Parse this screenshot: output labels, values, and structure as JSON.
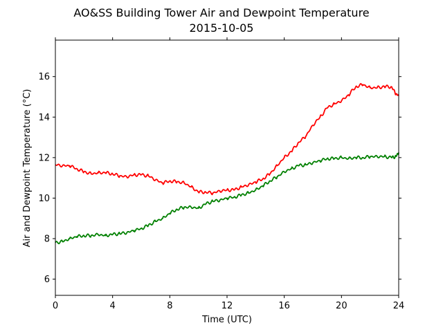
{
  "chart_data": {
    "type": "line",
    "title": "AO&SS Building Tower Air and Dewpoint Temperature",
    "subtitle": "2015-10-05",
    "xlabel": "Time (UTC)",
    "ylabel": "Air and Dewpoint Temperature (°C)",
    "xlim": [
      0,
      24
    ],
    "ylim": [
      5.2,
      17.8
    ],
    "xticks": [
      0,
      4,
      8,
      12,
      16,
      20,
      24
    ],
    "yticks": [
      6,
      8,
      10,
      12,
      14,
      16
    ],
    "grid": false,
    "series": [
      {
        "color": "#ff0000",
        "x": [
          0,
          0.5,
          1,
          1.5,
          2,
          2.5,
          3,
          3.5,
          4,
          4.5,
          5,
          5.5,
          6,
          6.5,
          7,
          7.5,
          8,
          8.5,
          9,
          9.5,
          10,
          10.5,
          11,
          11.5,
          12,
          12.5,
          13,
          13.5,
          14,
          14.5,
          15,
          15.5,
          16,
          16.5,
          17,
          17.5,
          18,
          18.5,
          19,
          19.5,
          20,
          20.5,
          21,
          21.5,
          22,
          22.5,
          23,
          23.5,
          23.8,
          24
        ],
        "values": [
          11.65,
          11.6,
          11.6,
          11.45,
          11.3,
          11.2,
          11.25,
          11.25,
          11.2,
          11.1,
          11.05,
          11.15,
          11.15,
          11.1,
          10.9,
          10.75,
          10.85,
          10.8,
          10.75,
          10.55,
          10.3,
          10.3,
          10.25,
          10.35,
          10.4,
          10.4,
          10.55,
          10.65,
          10.8,
          10.95,
          11.2,
          11.6,
          12.0,
          12.3,
          12.75,
          13.05,
          13.6,
          14.0,
          14.45,
          14.65,
          14.8,
          15.1,
          15.5,
          15.6,
          15.45,
          15.45,
          15.5,
          15.5,
          15.15,
          15.05
        ]
      },
      {
        "color": "#008000",
        "x": [
          0,
          0.5,
          1,
          1.5,
          2,
          2.5,
          3,
          3.5,
          4,
          4.5,
          5,
          5.5,
          6,
          6.5,
          7,
          7.5,
          8,
          8.5,
          9,
          9.5,
          10,
          10.5,
          11,
          11.5,
          12,
          12.5,
          13,
          13.5,
          14,
          14.5,
          15,
          15.5,
          16,
          16.5,
          17,
          17.5,
          18,
          18.5,
          19,
          19.5,
          20,
          20.5,
          21,
          21.5,
          22,
          22.5,
          23,
          23.5,
          23.8,
          24
        ],
        "values": [
          7.8,
          7.85,
          8.0,
          8.1,
          8.15,
          8.15,
          8.2,
          8.15,
          8.2,
          8.25,
          8.3,
          8.4,
          8.5,
          8.65,
          8.85,
          9.0,
          9.25,
          9.45,
          9.55,
          9.55,
          9.5,
          9.7,
          9.85,
          9.9,
          10.0,
          10.05,
          10.15,
          10.25,
          10.4,
          10.6,
          10.85,
          11.05,
          11.3,
          11.45,
          11.6,
          11.65,
          11.75,
          11.85,
          11.95,
          11.95,
          12.0,
          11.95,
          12.0,
          12.0,
          12.05,
          12.05,
          12.05,
          12.0,
          12.05,
          12.25
        ]
      }
    ]
  }
}
